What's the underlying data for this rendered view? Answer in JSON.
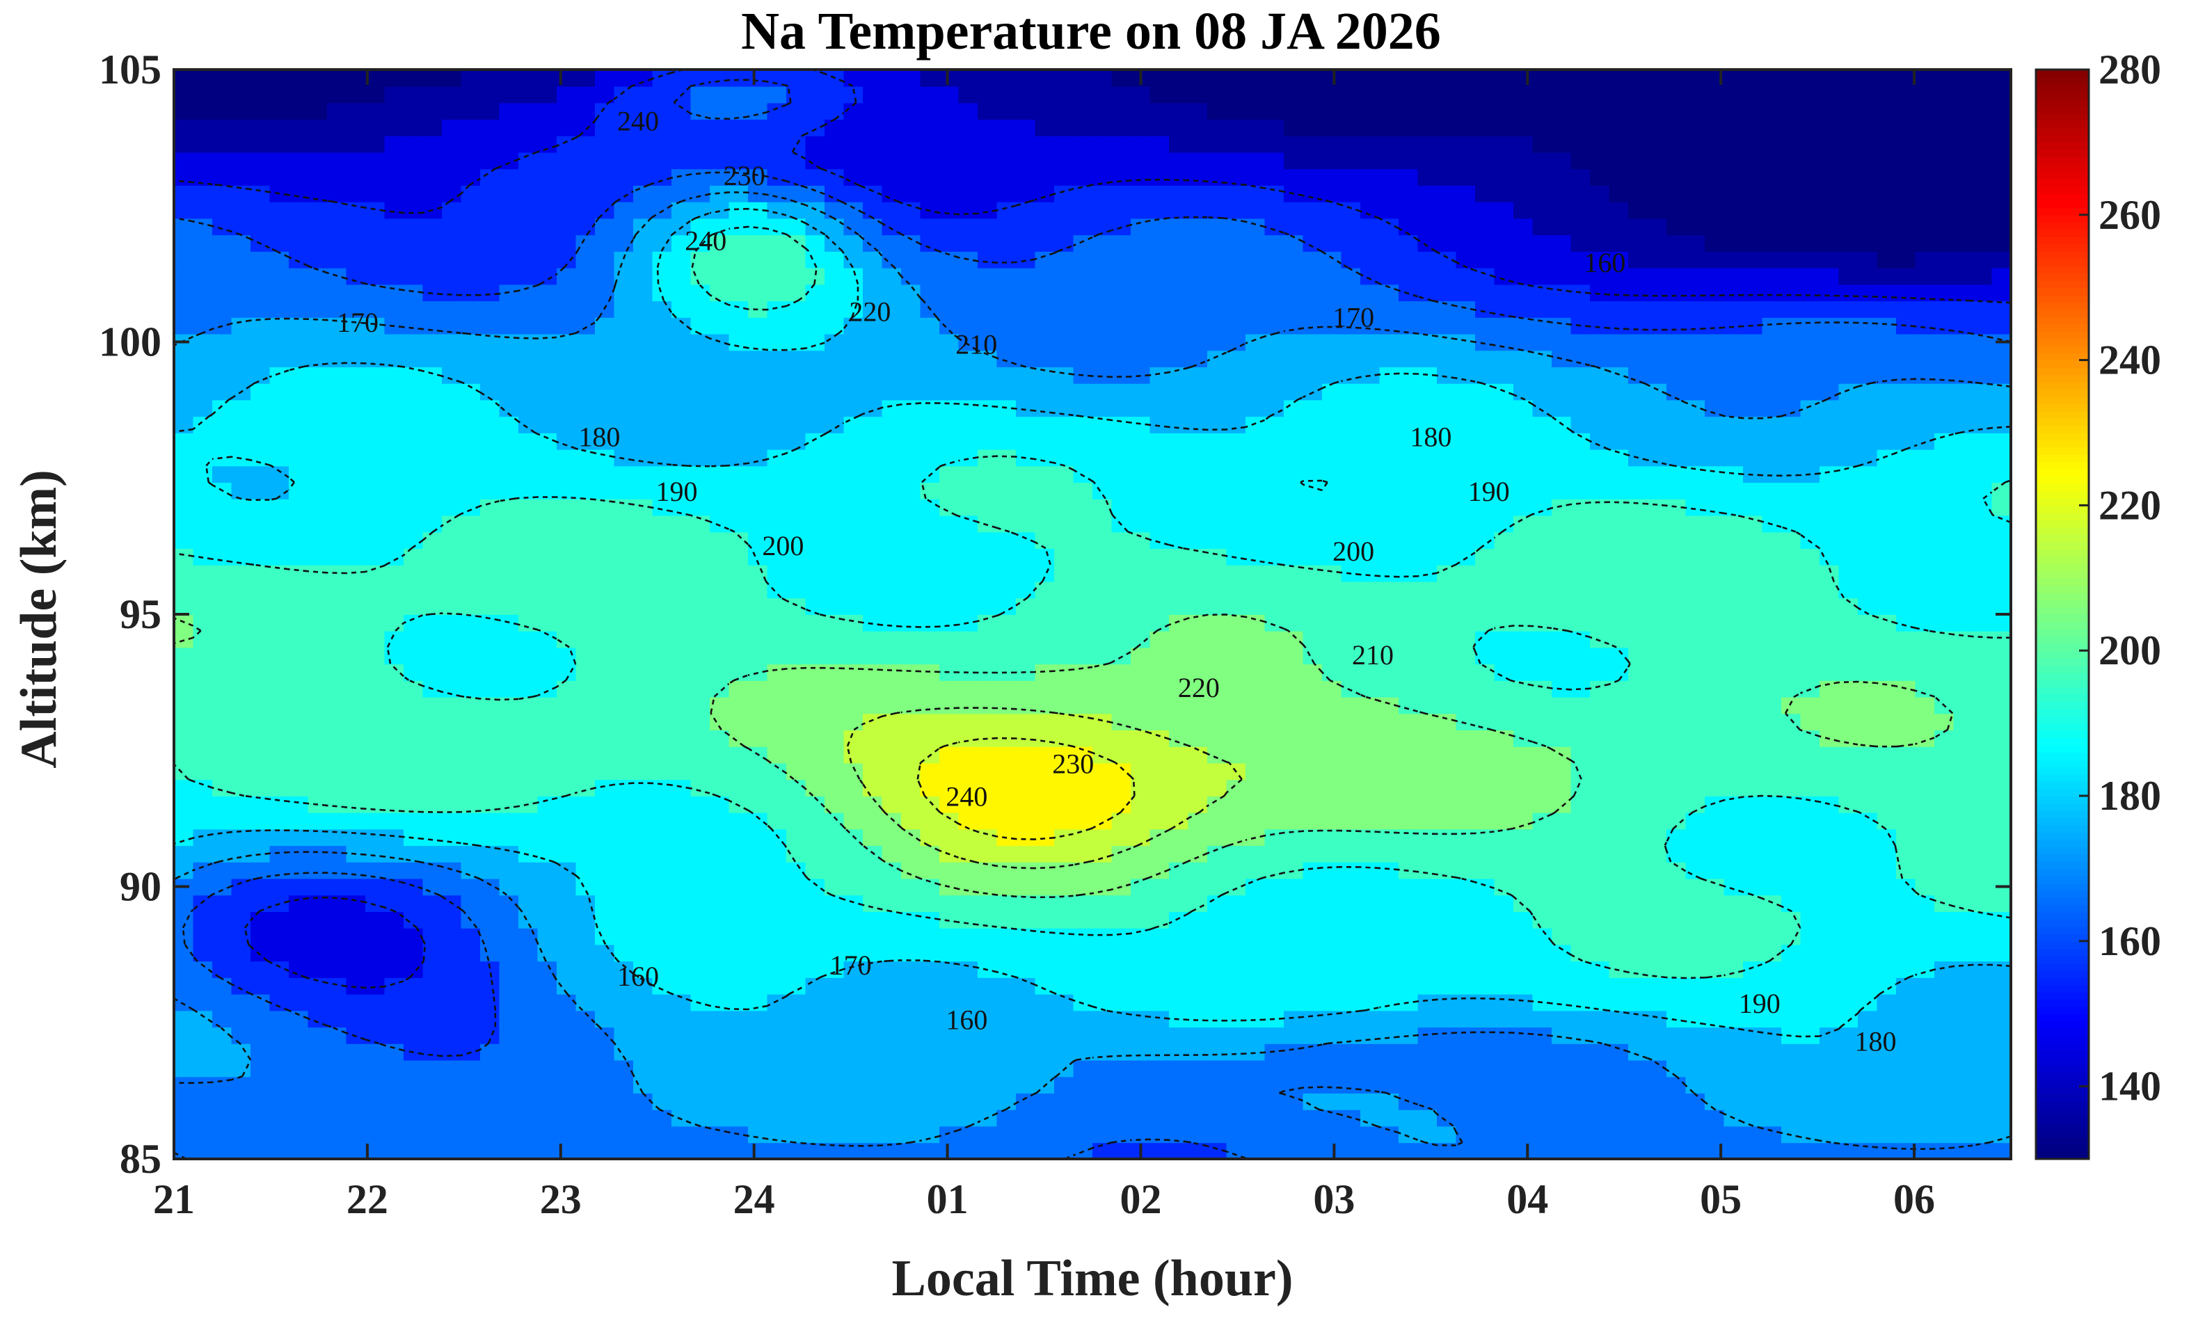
{
  "chart_data": {
    "type": "contour",
    "title": "Na Temperature on 08 JA 2026",
    "xlabel": "Local Time (hour)",
    "ylabel": "Altitude (km)",
    "x_ticks": [
      "21",
      "22",
      "23",
      "24",
      "01",
      "02",
      "03",
      "04",
      "05",
      "06"
    ],
    "x_tick_values": [
      21,
      22,
      23,
      24,
      25,
      26,
      27,
      28,
      29,
      30
    ],
    "xlim": [
      21,
      30.5
    ],
    "y_ticks": [
      "85",
      "90",
      "95",
      "100",
      "105"
    ],
    "y_tick_values": [
      85,
      90,
      95,
      100,
      105
    ],
    "ylim": [
      85,
      105
    ],
    "colorbar": {
      "ticks": [
        "140",
        "160",
        "180",
        "200",
        "220",
        "240",
        "260",
        "280"
      ],
      "tick_values": [
        140,
        160,
        180,
        200,
        220,
        240,
        260,
        280
      ],
      "range": [
        130,
        280
      ],
      "colormap": "jet"
    },
    "contour_levels": [
      150,
      160,
      170,
      180,
      190,
      200,
      210,
      220,
      230,
      240,
      250,
      260
    ],
    "features": [
      {
        "kind": "warm",
        "x": 25.4,
        "y": 91.9,
        "dx": 0.9,
        "dy": 1.5,
        "amp": 30
      },
      {
        "kind": "warm",
        "x": 24.0,
        "y": 101.8,
        "dx": 0.6,
        "dy": 1.3,
        "amp": 38
      },
      {
        "kind": "warm",
        "x": 23.9,
        "y": 104.7,
        "dx": 0.75,
        "dy": 0.9,
        "amp": 36
      },
      {
        "kind": "warm",
        "x": 26.5,
        "y": 92.2,
        "dx": 1.6,
        "dy": 1.4,
        "amp": 12
      },
      {
        "kind": "cold",
        "x": 21.9,
        "y": 89.0,
        "dx": 1.3,
        "dy": 2.0,
        "amp": 40
      },
      {
        "kind": "cold",
        "x": 29.6,
        "y": 103.5,
        "dx": 1.3,
        "dy": 2.6,
        "amp": 42
      },
      {
        "kind": "cold",
        "x": 26.8,
        "y": 87.0,
        "dx": 1.3,
        "dy": 0.7,
        "amp": 14
      }
    ],
    "contour_labels": [
      {
        "text": "240",
        "x": 23.4,
        "y": 104.0
      },
      {
        "text": "230",
        "x": 23.95,
        "y": 103.0
      },
      {
        "text": "240",
        "x": 23.75,
        "y": 101.8
      },
      {
        "text": "220",
        "x": 24.6,
        "y": 100.5
      },
      {
        "text": "210",
        "x": 25.15,
        "y": 99.9
      },
      {
        "text": "170",
        "x": 21.95,
        "y": 100.3
      },
      {
        "text": "180",
        "x": 23.2,
        "y": 98.2
      },
      {
        "text": "190",
        "x": 23.6,
        "y": 97.2
      },
      {
        "text": "200",
        "x": 24.15,
        "y": 96.2
      },
      {
        "text": "160",
        "x": 28.4,
        "y": 101.4
      },
      {
        "text": "170",
        "x": 27.1,
        "y": 100.4
      },
      {
        "text": "180",
        "x": 27.5,
        "y": 98.2
      },
      {
        "text": "190",
        "x": 27.8,
        "y": 97.2
      },
      {
        "text": "200",
        "x": 27.1,
        "y": 96.1
      },
      {
        "text": "210",
        "x": 27.2,
        "y": 94.2
      },
      {
        "text": "220",
        "x": 26.3,
        "y": 93.6
      },
      {
        "text": "230",
        "x": 25.65,
        "y": 92.2
      },
      {
        "text": "240",
        "x": 25.1,
        "y": 91.6
      },
      {
        "text": "160",
        "x": 23.4,
        "y": 88.3
      },
      {
        "text": "170",
        "x": 24.5,
        "y": 88.5
      },
      {
        "text": "160",
        "x": 25.1,
        "y": 87.5
      },
      {
        "text": "190",
        "x": 29.2,
        "y": 87.8
      },
      {
        "text": "180",
        "x": 29.8,
        "y": 87.1
      }
    ]
  }
}
